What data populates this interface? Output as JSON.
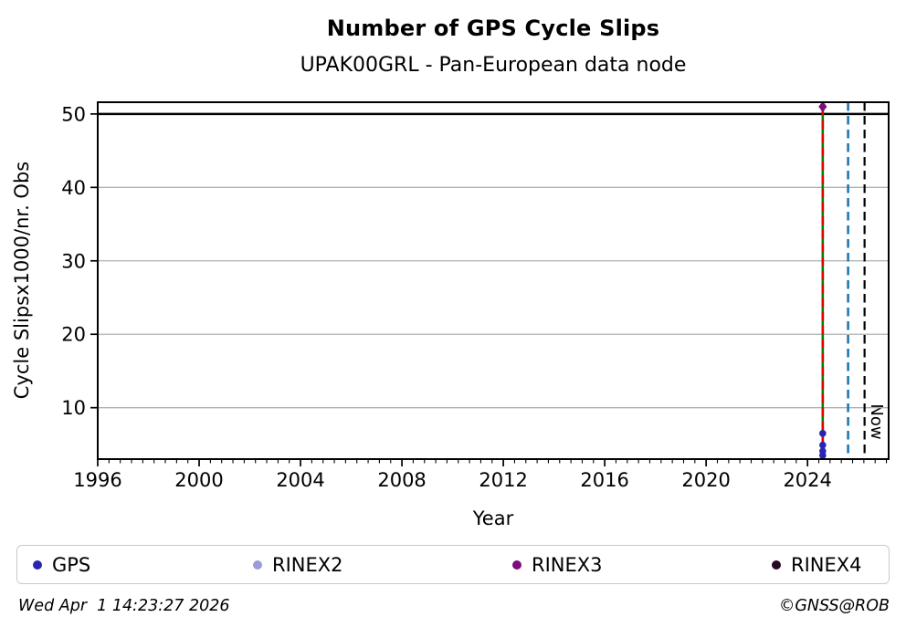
{
  "header": {
    "title": "Number of GPS Cycle Slips",
    "subtitle": "UPAK00GRL - Pan-European data node"
  },
  "footer": {
    "timestamp": "Wed Apr  1 14:23:27 2026",
    "credit": "©GNSS@ROB"
  },
  "chart_data": {
    "type": "scatter",
    "title": "Number of GPS Cycle Slips",
    "subtitle": "UPAK00GRL - Pan-European data node",
    "xlabel": "Year",
    "ylabel": "Cycle Slipsx1000/nr. Obs",
    "xlim": [
      1996,
      2027.2
    ],
    "ylim": [
      3,
      51.6
    ],
    "xticks": [
      1996,
      2000,
      2004,
      2008,
      2012,
      2016,
      2020,
      2024
    ],
    "yticks": [
      10,
      20,
      30,
      40,
      50
    ],
    "minor_tick_subdivisions": 9,
    "grid": "horizontal",
    "gridline_color": "#b0b0b0",
    "limit_line": {
      "y": 50,
      "color": "#000000"
    },
    "series": [
      {
        "name": "GPS",
        "marker": "circle",
        "color": "#2626b0",
        "points": [
          {
            "x": 2024.6,
            "y": 6.5
          },
          {
            "x": 2024.6,
            "y": 4.9
          },
          {
            "x": 2024.6,
            "y": 4.1
          },
          {
            "x": 2024.6,
            "y": 3.5
          }
        ]
      },
      {
        "name": "RINEX3",
        "marker": "diamond",
        "color": "#7d0c7d",
        "points": [
          {
            "x": 2024.6,
            "y": 51
          }
        ]
      }
    ],
    "vlines": [
      {
        "x": 2024.6,
        "style": "solid",
        "color": "#008000",
        "width": 2.6,
        "y_top": 51
      },
      {
        "x": 2024.6,
        "style": "dashed",
        "color": "#e60000",
        "width": 2.6,
        "y_top": 51
      },
      {
        "x": 2025.6,
        "style": "dashed",
        "color": "#1f77b4",
        "width": 2.6
      },
      {
        "x": 2026.25,
        "style": "dashed",
        "color": "#000000",
        "width": 2.2
      }
    ],
    "now_annotation": {
      "text": "Now",
      "x": 2026.25
    },
    "legend": [
      {
        "label": "GPS",
        "color": "#2626b0"
      },
      {
        "label": "RINEX2",
        "color": "#9b9bd9"
      },
      {
        "label": "RINEX3",
        "color": "#7d0c7d"
      },
      {
        "label": "RINEX4",
        "color": "#260b24"
      }
    ]
  }
}
